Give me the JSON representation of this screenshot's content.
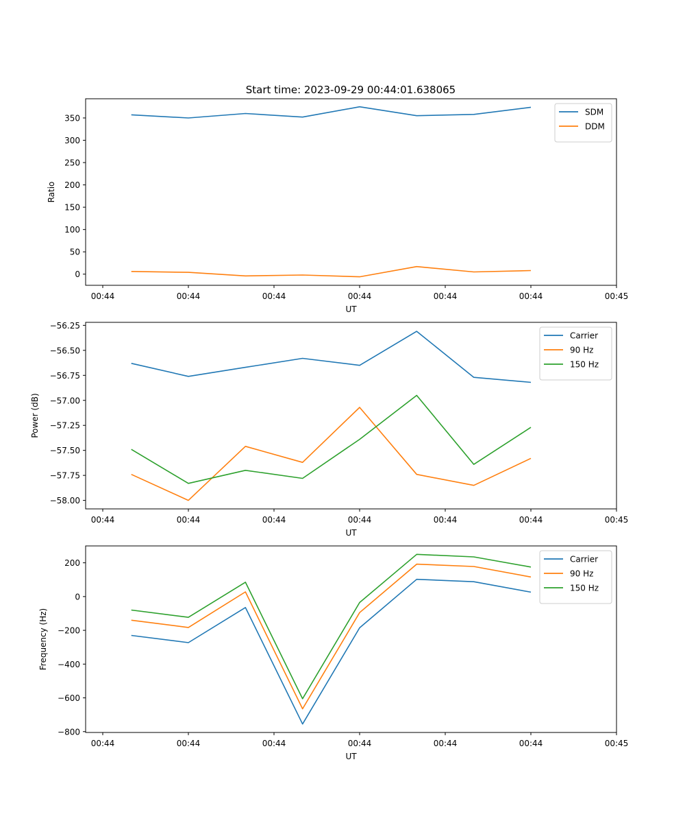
{
  "figure_title": "Start time: 2023-09-29 00:44:01.638065",
  "chart_data": [
    {
      "type": "line",
      "xlabel": "UT",
      "ylabel": "Ratio",
      "x": [
        1,
        2,
        3,
        4,
        5,
        6,
        7,
        8
      ],
      "xlim": [
        0.2,
        9.5
      ],
      "x_ticks": [
        0.5,
        2.0,
        3.5,
        5.0,
        6.5,
        8.0,
        9.5
      ],
      "x_tick_labels": [
        "00:44",
        "00:44",
        "00:44",
        "00:44",
        "00:44",
        "00:44",
        "00:45"
      ],
      "ylim": [
        -25,
        393
      ],
      "y_ticks": [
        0,
        50,
        100,
        150,
        200,
        250,
        300,
        350
      ],
      "y_tick_labels": [
        "0",
        "50",
        "100",
        "150",
        "200",
        "250",
        "300",
        "350"
      ],
      "legend_position": "top-right",
      "series": [
        {
          "name": "SDM",
          "color": "#1f77b4",
          "values": [
            357,
            350,
            360,
            352,
            375,
            355,
            358,
            374
          ]
        },
        {
          "name": "DDM",
          "color": "#ff7f0e",
          "values": [
            6,
            4,
            -4,
            -2,
            -6,
            17,
            5,
            8
          ]
        }
      ]
    },
    {
      "type": "line",
      "xlabel": "UT",
      "ylabel": "Power (dB)",
      "x": [
        1,
        2,
        3,
        4,
        5,
        6,
        7,
        8
      ],
      "xlim": [
        0.2,
        9.5
      ],
      "x_ticks": [
        0.5,
        2.0,
        3.5,
        5.0,
        6.5,
        8.0,
        9.5
      ],
      "x_tick_labels": [
        "00:44",
        "00:44",
        "00:44",
        "00:44",
        "00:44",
        "00:44",
        "00:45"
      ],
      "ylim": [
        -58.085,
        -56.22
      ],
      "y_ticks": [
        -58.0,
        -57.75,
        -57.5,
        -57.25,
        -57.0,
        -56.75,
        -56.5,
        -56.25
      ],
      "y_tick_labels": [
        "−58.00",
        "−57.75",
        "−57.50",
        "−57.25",
        "−57.00",
        "−56.75",
        "−56.50",
        "−56.25"
      ],
      "legend_position": "top-right",
      "series": [
        {
          "name": "Carrier",
          "color": "#1f77b4",
          "values": [
            -56.63,
            -56.76,
            -56.67,
            -56.58,
            -56.65,
            -56.31,
            -56.77,
            -56.82
          ]
        },
        {
          "name": "90 Hz",
          "color": "#ff7f0e",
          "values": [
            -57.74,
            -58.0,
            -57.46,
            -57.62,
            -57.07,
            -57.74,
            -57.85,
            -57.58
          ]
        },
        {
          "name": "150 Hz",
          "color": "#2ca02c",
          "values": [
            -57.49,
            -57.83,
            -57.7,
            -57.78,
            -57.39,
            -56.95,
            -57.64,
            -57.27
          ]
        }
      ]
    },
    {
      "type": "line",
      "xlabel": "UT",
      "ylabel": "Frequency (Hz)",
      "x": [
        1,
        2,
        3,
        4,
        5,
        6,
        7,
        8
      ],
      "xlim": [
        0.2,
        9.5
      ],
      "x_ticks": [
        0.5,
        2.0,
        3.5,
        5.0,
        6.5,
        8.0,
        9.5
      ],
      "x_tick_labels": [
        "00:44",
        "00:44",
        "00:44",
        "00:44",
        "00:44",
        "00:44",
        "00:45"
      ],
      "ylim": [
        -805,
        300
      ],
      "y_ticks": [
        -800,
        -600,
        -400,
        -200,
        0,
        200
      ],
      "y_tick_labels": [
        "−800",
        "−600",
        "−400",
        "−200",
        "0",
        "200"
      ],
      "legend_position": "top-right",
      "series": [
        {
          "name": "Carrier",
          "color": "#1f77b4",
          "values": [
            -230,
            -273,
            -65,
            -755,
            -185,
            102,
            88,
            26
          ]
        },
        {
          "name": "90 Hz",
          "color": "#ff7f0e",
          "values": [
            -140,
            -183,
            28,
            -665,
            -95,
            192,
            178,
            116
          ]
        },
        {
          "name": "150 Hz",
          "color": "#2ca02c",
          "values": [
            -80,
            -123,
            85,
            -605,
            -35,
            250,
            235,
            175
          ]
        }
      ]
    }
  ]
}
